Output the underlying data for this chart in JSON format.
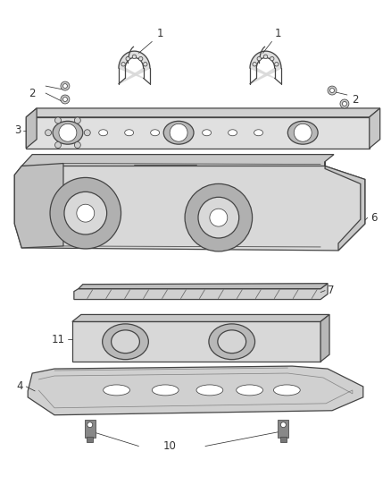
{
  "bg_color": "#ffffff",
  "line_color": "#444444",
  "label_color": "#333333",
  "part_fill": "#e8e8e8",
  "dark_fill": "#c8c8c8",
  "figsize": [
    4.38,
    5.33
  ],
  "dpi": 100
}
